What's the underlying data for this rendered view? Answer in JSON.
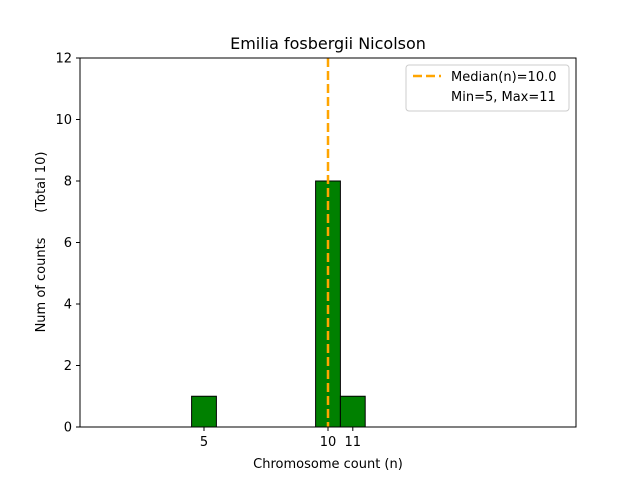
{
  "chart_data": {
    "type": "bar",
    "title": "Emilia fosbergii Nicolson",
    "xlabel": "Chromosome count (n)",
    "ylabel": "Num of counts      (Total 10)",
    "xlim": [
      0,
      20
    ],
    "ylim": [
      0,
      12
    ],
    "x_ticks": [
      5,
      10,
      11
    ],
    "y_ticks": [
      0,
      2,
      4,
      6,
      8,
      10,
      12
    ],
    "bar_color": "#008000",
    "bar_edge_color": "#000000",
    "bar_width": 1,
    "bars": [
      {
        "x": 5,
        "value": 1
      },
      {
        "x": 10,
        "value": 8
      },
      {
        "x": 11,
        "value": 1
      }
    ],
    "baseline_extent": [
      1,
      14.5
    ],
    "median": {
      "x": 10,
      "color": "#FFA500",
      "label": "Median(n)=10.0"
    },
    "legend": {
      "position": "top-right",
      "entries": [
        "Median(n)=10.0",
        "Min=5, Max=11"
      ]
    }
  }
}
